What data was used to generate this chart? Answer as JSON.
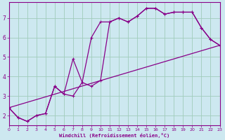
{
  "background_color": "#cde8f0",
  "grid_color": "#a0ccbb",
  "line_color": "#880088",
  "xlim": [
    0,
    23
  ],
  "ylim": [
    1.5,
    7.8
  ],
  "yticks": [
    2,
    3,
    4,
    5,
    6,
    7
  ],
  "xticks": [
    0,
    1,
    2,
    3,
    4,
    5,
    6,
    7,
    8,
    9,
    10,
    11,
    12,
    13,
    14,
    15,
    16,
    17,
    18,
    19,
    20,
    21,
    22,
    23
  ],
  "xlabel": "Windchill (Refroidissement éolien,°C)",
  "series1_x": [
    0,
    1,
    2,
    3,
    4,
    5,
    6,
    7,
    8,
    9,
    10,
    11,
    12,
    13,
    14,
    15,
    16,
    17,
    18,
    19,
    20,
    21,
    22,
    23
  ],
  "series1_y": [
    2.4,
    1.9,
    1.7,
    2.0,
    2.1,
    3.5,
    3.1,
    4.9,
    3.7,
    3.5,
    3.8,
    6.8,
    7.0,
    6.8,
    7.1,
    7.5,
    7.5,
    7.2,
    7.3,
    7.3,
    7.3,
    6.5,
    5.9,
    5.6
  ],
  "series2_x": [
    0,
    1,
    2,
    3,
    4,
    5,
    6,
    7,
    8,
    9,
    10,
    11,
    12,
    13,
    14,
    15,
    16,
    17,
    18,
    19,
    20,
    21,
    22,
    23
  ],
  "series2_y": [
    2.4,
    1.9,
    1.7,
    2.0,
    2.1,
    3.5,
    3.1,
    3.0,
    3.7,
    6.0,
    6.8,
    6.8,
    7.0,
    6.8,
    7.1,
    7.5,
    7.5,
    7.2,
    7.3,
    7.3,
    7.3,
    6.5,
    5.9,
    5.6
  ],
  "series3_x": [
    0,
    23
  ],
  "series3_y": [
    2.4,
    5.6
  ]
}
